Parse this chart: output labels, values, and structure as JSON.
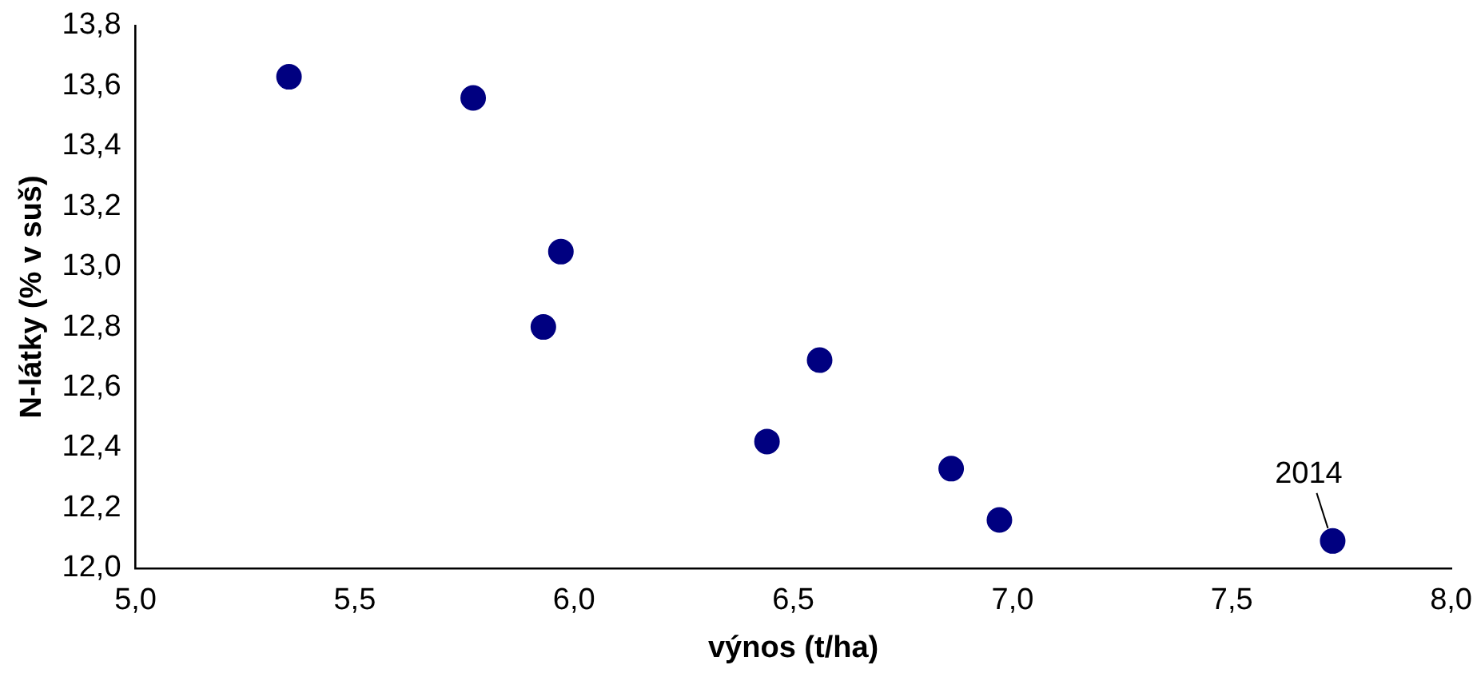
{
  "chart_data": {
    "type": "scatter",
    "xlabel": "výnos (t/ha)",
    "ylabel": "N-látky (% v suš)",
    "xlim": [
      5.0,
      8.0
    ],
    "xticks": [
      {
        "value": 5,
        "label": "5,0"
      },
      {
        "value": 5.5,
        "label": "5,5"
      },
      {
        "value": 6,
        "label": "6,0"
      },
      {
        "value": 6.5,
        "label": "6,5"
      },
      {
        "value": 7,
        "label": "7,0"
      },
      {
        "value": 7.5,
        "label": "7,5"
      },
      {
        "value": 8,
        "label": "8,0"
      }
    ],
    "ylim": [
      12.0,
      13.8
    ],
    "yticks": [
      {
        "value": 12,
        "label": "12,0"
      },
      {
        "value": 12.2,
        "label": "12,2"
      },
      {
        "value": 12.4,
        "label": "12,4"
      },
      {
        "value": 12.6,
        "label": "12,6"
      },
      {
        "value": 12.8,
        "label": "12,8"
      },
      {
        "value": 13,
        "label": "13,0"
      },
      {
        "value": 13.2,
        "label": "13,2"
      },
      {
        "value": 13.4,
        "label": "13,4"
      },
      {
        "value": 13.6,
        "label": "13,6"
      },
      {
        "value": 13.8,
        "label": "13,8"
      }
    ],
    "series": [
      {
        "color": "#000080",
        "x": [
          5.35,
          5.77,
          5.97,
          5.93,
          6.56,
          6.44,
          6.86,
          6.97,
          7.73
        ],
        "values": [
          13.63,
          13.56,
          13.05,
          12.8,
          12.69,
          12.42,
          12.33,
          12.16,
          12.09
        ]
      }
    ],
    "annotations": [
      {
        "text": "2014",
        "x": 7.73,
        "y": 12.09
      }
    ],
    "grid": false,
    "legend": false,
    "marker": "circle"
  }
}
